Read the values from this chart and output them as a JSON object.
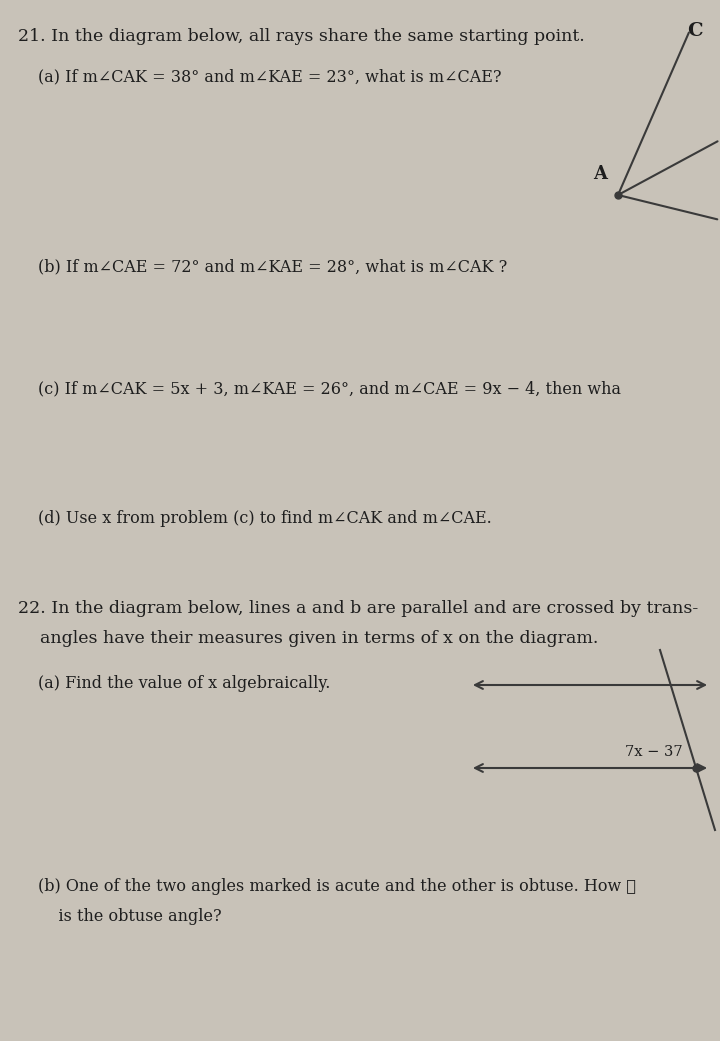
{
  "bg_color": "#c8c2b8",
  "text_color": "#1e1e1e",
  "title_21": "21. In the diagram below, all rays share the same starting point.",
  "part_a": "(a) If m∠CAK = 38° and m∠KAE = 23°, what is m∠CAE?",
  "part_b": "(b) If m∠CAE = 72° and m∠KAE = 28°, what is m∠CAK ?",
  "part_c": "(c) If m∠CAK = 5x + 3, m∠KAE = 26°, and m∠CAE = 9x − 4, then wha",
  "part_d": "(d) Use x from problem (c) to find m∠CAK and m∠CAE.",
  "title_22": "22. In the diagram below, lines a and b are parallel and are crossed by trans-",
  "title_22b": "    angles have their measures given in terms of x on the diagram.",
  "part_22a": "(a) Find the value of x algebraically.",
  "part_22b": "(b) One of the two angles marked is acute and the other is obtuse. How ℓ",
  "part_22b2": "    is the obtuse angle?",
  "angle_label": "7x − 37",
  "C_label": "C",
  "A_label": "A"
}
